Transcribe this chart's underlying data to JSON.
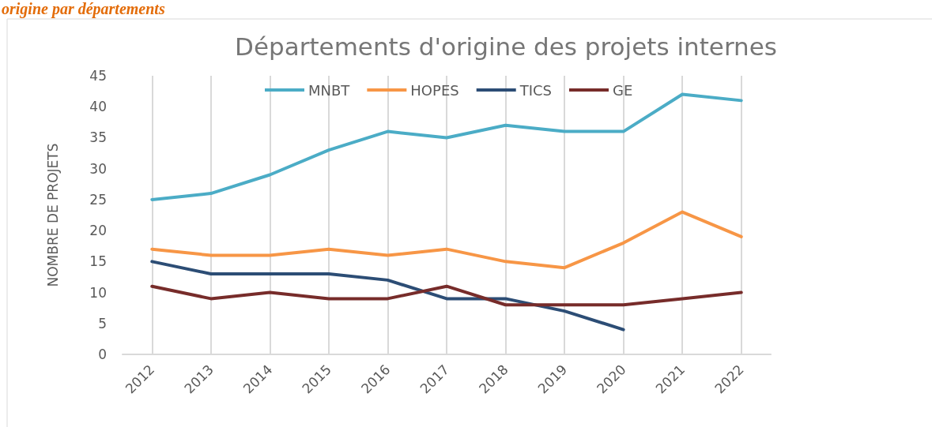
{
  "chart_data": {
    "type": "line",
    "title": "Départements d'origine des projets internes",
    "ylabel": "NOMBRE DE PROJETS",
    "annotations": [
      "origine par départements"
    ],
    "categories": [
      "2012",
      "2013",
      "2014",
      "2015",
      "2016",
      "2017",
      "2018",
      "2019",
      "2020",
      "2021",
      "2022"
    ],
    "series": [
      {
        "name": "MNBT",
        "color": "#4bacc6",
        "values": [
          25,
          26,
          29,
          33,
          36,
          35,
          37,
          36,
          36,
          42,
          41
        ]
      },
      {
        "name": "HOPES",
        "color": "#f79646",
        "values": [
          17,
          16,
          16,
          17,
          16,
          17,
          15,
          14,
          18,
          23,
          19
        ]
      },
      {
        "name": "TICS",
        "color": "#2c4d75",
        "values": [
          15,
          13,
          13,
          13,
          12,
          9,
          9,
          7,
          4,
          null,
          null
        ]
      },
      {
        "name": "GE",
        "color": "#772c2a",
        "values": [
          11,
          9,
          10,
          9,
          9,
          11,
          8,
          8,
          8,
          9,
          10
        ]
      }
    ],
    "ylim": [
      0,
      45
    ],
    "yticks": [
      0,
      5,
      10,
      15,
      20,
      25,
      30,
      35,
      40,
      45
    ],
    "grid": "x",
    "legend": "top",
    "marker": "none",
    "line_style": "solid"
  }
}
